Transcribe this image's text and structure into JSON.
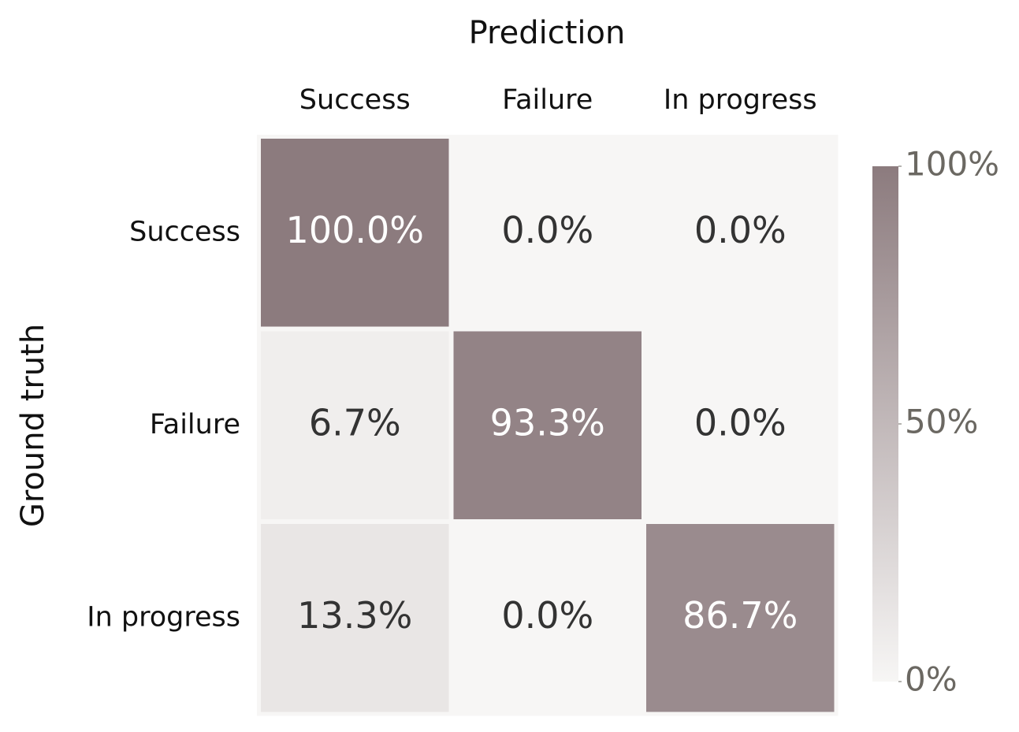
{
  "chart_data": {
    "type": "heatmap",
    "x_label": "Prediction",
    "y_label": "Ground truth",
    "x_categories": [
      "Success",
      "Failure",
      "In progress"
    ],
    "y_categories": [
      "Success",
      "Failure",
      "In progress"
    ],
    "values": [
      [
        100,
        0,
        0
      ],
      [
        6.7,
        93.3,
        0
      ],
      [
        13.3,
        0,
        86.7
      ]
    ],
    "value_labels": [
      [
        "100.0%",
        "0.0%",
        "0.0%"
      ],
      [
        "6.7%",
        "93.3%",
        "0.0%"
      ],
      [
        "13.3%",
        "0.0%",
        "86.7%"
      ]
    ],
    "colorbar_lim": [
      0,
      100
    ],
    "colorbar_ticks": [
      {
        "value": 0,
        "label": "0%"
      },
      {
        "value": 50,
        "label": "50%"
      },
      {
        "value": 100,
        "label": "100%"
      }
    ],
    "low_color": "#f7f6f5",
    "high_color": "#8c7b7e"
  }
}
